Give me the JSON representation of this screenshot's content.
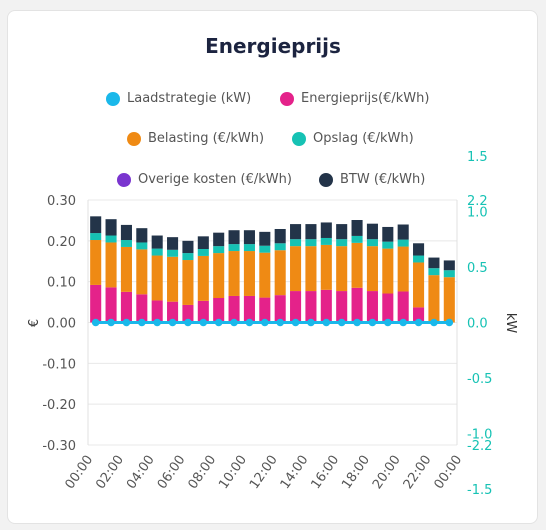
{
  "title": "Energieprijs",
  "legend": [
    {
      "label": "Laadstrategie (kW)",
      "color": "#1ab8ea"
    },
    {
      "label": "Energieprijs(€/kWh)",
      "color": "#e4228a"
    },
    {
      "label": "Belasting (€/kWh)",
      "color": "#ef8a14"
    },
    {
      "label": "Opslag (€/kWh)",
      "color": "#16c2b4"
    },
    {
      "label": "Overige kosten (€/kWh)",
      "color": "#7a35cf"
    },
    {
      "label": "BTW (€/kWh)",
      "color": "#233449"
    }
  ],
  "chart_data": {
    "type": "bar",
    "stacked": true,
    "categories": [
      "00:00",
      "01:00",
      "02:00",
      "03:00",
      "04:00",
      "05:00",
      "06:00",
      "07:00",
      "08:00",
      "09:00",
      "10:00",
      "11:00",
      "12:00",
      "13:00",
      "14:00",
      "15:00",
      "16:00",
      "17:00",
      "18:00",
      "19:00",
      "20:00",
      "21:00",
      "22:00",
      "23:00"
    ],
    "x_tick_labels": [
      "00:00",
      "02:00",
      "04:00",
      "06:00",
      "08:00",
      "10:00",
      "12:00",
      "14:00",
      "16:00",
      "18:00",
      "20:00",
      "22:00",
      "00:00"
    ],
    "series": [
      {
        "name": "Energieprijs(€/kWh)",
        "color": "#e4228a",
        "values": [
          0.092,
          0.086,
          0.075,
          0.069,
          0.054,
          0.051,
          0.043,
          0.053,
          0.06,
          0.065,
          0.065,
          0.061,
          0.067,
          0.077,
          0.077,
          0.08,
          0.077,
          0.085,
          0.077,
          0.071,
          0.076,
          0.037,
          0.0,
          0.0
        ]
      },
      {
        "name": "Belasting (€/kWh)",
        "color": "#ef8a14",
        "values": [
          0.11,
          0.11,
          0.11,
          0.11,
          0.11,
          0.11,
          0.11,
          0.11,
          0.11,
          0.11,
          0.11,
          0.11,
          0.11,
          0.11,
          0.11,
          0.11,
          0.11,
          0.11,
          0.11,
          0.11,
          0.11,
          0.11,
          0.116,
          0.111
        ]
      },
      {
        "name": "Opslag (€/kWh)",
        "color": "#16c2b4",
        "values": [
          0.017,
          0.017,
          0.017,
          0.017,
          0.017,
          0.017,
          0.017,
          0.017,
          0.017,
          0.017,
          0.017,
          0.017,
          0.017,
          0.017,
          0.017,
          0.017,
          0.017,
          0.017,
          0.017,
          0.017,
          0.017,
          0.017,
          0.017,
          0.017
        ]
      },
      {
        "name": "Overige kosten (€/kWh)",
        "color": "#7a35cf",
        "values": [
          0.0,
          0.0,
          0.0,
          0.0,
          0.0,
          0.0,
          0.0,
          0.0,
          0.0,
          0.0,
          0.0,
          0.0,
          0.0,
          0.0,
          0.0,
          0.0,
          0.0,
          0.0,
          0.0,
          0.0,
          0.0,
          0.0,
          0.0,
          0.0
        ]
      },
      {
        "name": "BTW (€/kWh)",
        "color": "#233449",
        "values": [
          0.041,
          0.04,
          0.037,
          0.035,
          0.032,
          0.031,
          0.03,
          0.031,
          0.033,
          0.034,
          0.034,
          0.034,
          0.035,
          0.037,
          0.037,
          0.038,
          0.037,
          0.039,
          0.038,
          0.036,
          0.037,
          0.03,
          0.026,
          0.024
        ]
      }
    ],
    "line_series": {
      "name": "Laadstrategie (kW)",
      "color": "#1ab8ea",
      "values": [
        0,
        0,
        0,
        0,
        0,
        0,
        0,
        0,
        0,
        0,
        0,
        0,
        0,
        0,
        0,
        0,
        0,
        0,
        0,
        0,
        0,
        0,
        0,
        0
      ]
    },
    "y_left": {
      "label": "€",
      "ticks": [
        "0.30",
        "0.20",
        "0.10",
        "0.00",
        "-0.10",
        "-0.20",
        "-0.30"
      ],
      "ylim": [
        -0.3,
        0.3
      ]
    },
    "y_right": {
      "label": "kW",
      "ticks": [
        "2.2",
        "1.5",
        "1.0",
        "0.5",
        "0.0",
        "-0.5",
        "-1.0",
        "-1.5",
        "-2.2"
      ],
      "ylim": [
        -2.2,
        2.2
      ],
      "color": "#16c2b4"
    }
  }
}
